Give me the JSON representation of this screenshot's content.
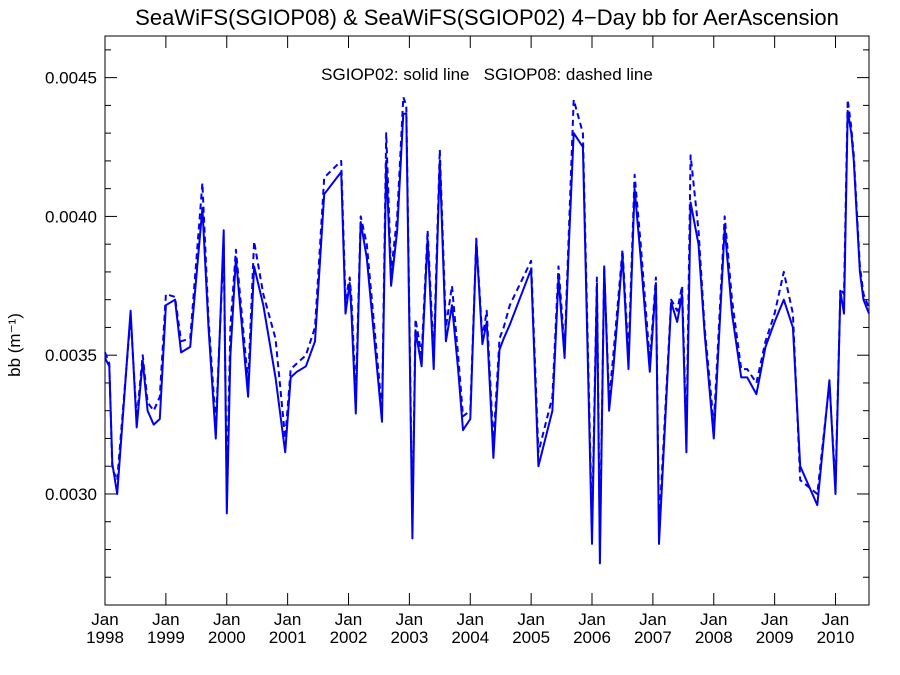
{
  "chart_data": {
    "type": "line",
    "title": "SeaWiFS(SGIOP08) & SeaWiFS(SGIOP02) 4−Day bb for AerAscension",
    "ylabel": "bb (m⁻¹)",
    "annotation": "SGIOP02: solid line   SGIOP08: dashed line",
    "xlim": [
      1998.0,
      2010.55
    ],
    "ylim": [
      0.0026,
      0.00465
    ],
    "yticks": [
      {
        "value": 0.003,
        "label": "0.0030"
      },
      {
        "value": 0.0035,
        "label": "0.0035"
      },
      {
        "value": 0.004,
        "label": "0.0040"
      },
      {
        "value": 0.0045,
        "label": "0.0045"
      }
    ],
    "xticks": [
      {
        "value": 1998,
        "month": "Jan",
        "year": "1998"
      },
      {
        "value": 1999,
        "month": "Jan",
        "year": "1999"
      },
      {
        "value": 2000,
        "month": "Jan",
        "year": "2000"
      },
      {
        "value": 2001,
        "month": "Jan",
        "year": "2001"
      },
      {
        "value": 2002,
        "month": "Jan",
        "year": "2002"
      },
      {
        "value": 2003,
        "month": "Jan",
        "year": "2003"
      },
      {
        "value": 2004,
        "month": "Jan",
        "year": "2004"
      },
      {
        "value": 2005,
        "month": "Jan",
        "year": "2005"
      },
      {
        "value": 2006,
        "month": "Jan",
        "year": "2006"
      },
      {
        "value": 2007,
        "month": "Jan",
        "year": "2007"
      },
      {
        "value": 2008,
        "month": "Jan",
        "year": "2008"
      },
      {
        "value": 2009,
        "month": "Jan",
        "year": "2009"
      },
      {
        "value": 2010,
        "month": "Jan",
        "year": "2010"
      }
    ],
    "series": [
      {
        "style": "solid",
        "color": "#0000ee",
        "x": [
          1998.0,
          1998.07,
          1998.12,
          1998.2,
          1998.42,
          1998.52,
          1998.62,
          1998.7,
          1998.8,
          1998.9,
          1999.0,
          1999.15,
          1999.25,
          1999.4,
          1999.6,
          1999.7,
          1999.82,
          1999.95,
          2000.0,
          2000.06,
          2000.15,
          2000.35,
          2000.45,
          2000.6,
          2000.8,
          2000.96,
          2001.05,
          2001.15,
          2001.3,
          2001.45,
          2001.6,
          2001.88,
          2001.95,
          2002.02,
          2002.05,
          2002.12,
          2002.2,
          2002.3,
          2002.55,
          2002.62,
          2002.7,
          2002.8,
          2002.9,
          2002.95,
          2003.05,
          2003.1,
          2003.2,
          2003.3,
          2003.4,
          2003.5,
          2003.6,
          2003.7,
          2003.8,
          2003.88,
          2004.0,
          2004.1,
          2004.2,
          2004.27,
          2004.38,
          2004.48,
          2004.55,
          2004.65,
          2005.0,
          2005.12,
          2005.35,
          2005.45,
          2005.55,
          2005.62,
          2005.7,
          2005.85,
          2006.0,
          2006.08,
          2006.13,
          2006.2,
          2006.28,
          2006.35,
          2006.5,
          2006.6,
          2006.7,
          2006.8,
          2006.95,
          2007.05,
          2007.1,
          2007.3,
          2007.4,
          2007.48,
          2007.55,
          2007.62,
          2007.75,
          2007.85,
          2008.0,
          2008.18,
          2008.3,
          2008.45,
          2008.55,
          2008.7,
          2008.85,
          2009.0,
          2009.15,
          2009.3,
          2009.42,
          2009.7,
          2009.9,
          2010.0,
          2010.08,
          2010.14,
          2010.2,
          2010.26,
          2010.3,
          2010.35,
          2010.4,
          2010.46,
          2010.55
        ],
        "y": [
          0.00349,
          0.00346,
          0.00311,
          0.003,
          0.00366,
          0.00324,
          0.00348,
          0.0033,
          0.00325,
          0.00327,
          0.00368,
          0.0037,
          0.00351,
          0.00353,
          0.00403,
          0.0036,
          0.0032,
          0.00395,
          0.00293,
          0.0035,
          0.00385,
          0.00335,
          0.00382,
          0.00368,
          0.00342,
          0.00315,
          0.00342,
          0.00344,
          0.00346,
          0.00355,
          0.00408,
          0.00416,
          0.00365,
          0.00376,
          0.00365,
          0.00329,
          0.00398,
          0.00385,
          0.00326,
          0.0042,
          0.00375,
          0.00395,
          0.00437,
          0.00437,
          0.00284,
          0.00359,
          0.00346,
          0.00392,
          0.00345,
          0.0042,
          0.00355,
          0.00368,
          0.00345,
          0.00323,
          0.00327,
          0.00391,
          0.00354,
          0.00362,
          0.00313,
          0.00352,
          0.00356,
          0.00361,
          0.00381,
          0.0031,
          0.0033,
          0.00378,
          0.00349,
          0.0039,
          0.0043,
          0.00425,
          0.00282,
          0.00375,
          0.00275,
          0.00382,
          0.0033,
          0.00345,
          0.00386,
          0.00345,
          0.0041,
          0.00385,
          0.00344,
          0.00376,
          0.00282,
          0.00369,
          0.00362,
          0.00372,
          0.00315,
          0.00405,
          0.0039,
          0.00358,
          0.0032,
          0.00396,
          0.00365,
          0.00342,
          0.00342,
          0.00336,
          0.00353,
          0.00362,
          0.0037,
          0.0036,
          0.0031,
          0.00296,
          0.00341,
          0.003,
          0.00373,
          0.00365,
          0.00438,
          0.0043,
          0.0042,
          0.004,
          0.0038,
          0.0037,
          0.00365
        ]
      },
      {
        "style": "dashed",
        "color": "#0000ee",
        "x": [
          1998.0,
          1998.07,
          1998.12,
          1998.2,
          1998.42,
          1998.52,
          1998.62,
          1998.7,
          1998.8,
          1998.9,
          1999.0,
          1999.15,
          1999.25,
          1999.4,
          1999.6,
          1999.7,
          1999.82,
          1999.95,
          2000.0,
          2000.06,
          2000.15,
          2000.35,
          2000.45,
          2000.6,
          2000.8,
          2000.96,
          2001.05,
          2001.15,
          2001.3,
          2001.45,
          2001.6,
          2001.88,
          2001.95,
          2002.02,
          2002.05,
          2002.12,
          2002.2,
          2002.3,
          2002.55,
          2002.62,
          2002.7,
          2002.8,
          2002.9,
          2002.95,
          2003.05,
          2003.1,
          2003.2,
          2003.3,
          2003.4,
          2003.5,
          2003.6,
          2003.7,
          2003.8,
          2003.88,
          2004.0,
          2004.1,
          2004.2,
          2004.27,
          2004.38,
          2004.48,
          2004.55,
          2004.65,
          2005.0,
          2005.12,
          2005.35,
          2005.45,
          2005.55,
          2005.62,
          2005.7,
          2005.85,
          2006.0,
          2006.08,
          2006.13,
          2006.2,
          2006.28,
          2006.35,
          2006.5,
          2006.6,
          2006.7,
          2006.8,
          2006.95,
          2007.05,
          2007.1,
          2007.3,
          2007.4,
          2007.48,
          2007.55,
          2007.62,
          2007.75,
          2007.85,
          2008.0,
          2008.18,
          2008.3,
          2008.45,
          2008.55,
          2008.7,
          2008.85,
          2009.0,
          2009.15,
          2009.3,
          2009.42,
          2009.7,
          2009.9,
          2010.0,
          2010.08,
          2010.14,
          2010.2,
          2010.26,
          2010.3,
          2010.35,
          2010.4,
          2010.46,
          2010.55
        ],
        "y": [
          0.00351,
          0.00347,
          0.00309,
          0.00305,
          0.00364,
          0.00327,
          0.0035,
          0.00333,
          0.0033,
          0.00335,
          0.00372,
          0.00371,
          0.00355,
          0.00356,
          0.00412,
          0.00363,
          0.00325,
          0.0039,
          0.00302,
          0.0036,
          0.00388,
          0.0034,
          0.00391,
          0.00372,
          0.00356,
          0.0032,
          0.00345,
          0.00347,
          0.0035,
          0.0036,
          0.00414,
          0.0042,
          0.0037,
          0.00378,
          0.0037,
          0.00335,
          0.004,
          0.0039,
          0.0033,
          0.0043,
          0.0038,
          0.004,
          0.00443,
          0.0044,
          0.0029,
          0.00363,
          0.0035,
          0.00395,
          0.0035,
          0.00424,
          0.0036,
          0.00375,
          0.0035,
          0.00328,
          0.0033,
          0.00392,
          0.00356,
          0.00366,
          0.00318,
          0.00356,
          0.0036,
          0.00368,
          0.00384,
          0.00315,
          0.00335,
          0.00382,
          0.00352,
          0.00395,
          0.00442,
          0.0043,
          0.00288,
          0.00378,
          0.00282,
          0.00381,
          0.00334,
          0.0035,
          0.00388,
          0.0035,
          0.00415,
          0.0039,
          0.00348,
          0.00378,
          0.00288,
          0.0037,
          0.00366,
          0.00375,
          0.0032,
          0.00422,
          0.00395,
          0.0036,
          0.00325,
          0.004,
          0.0037,
          0.00345,
          0.00345,
          0.0034,
          0.00355,
          0.00365,
          0.0038,
          0.00365,
          0.00305,
          0.003,
          0.0034,
          0.00303,
          0.00374,
          0.00372,
          0.00442,
          0.00432,
          0.00422,
          0.00402,
          0.00382,
          0.00372,
          0.00367
        ]
      }
    ]
  }
}
